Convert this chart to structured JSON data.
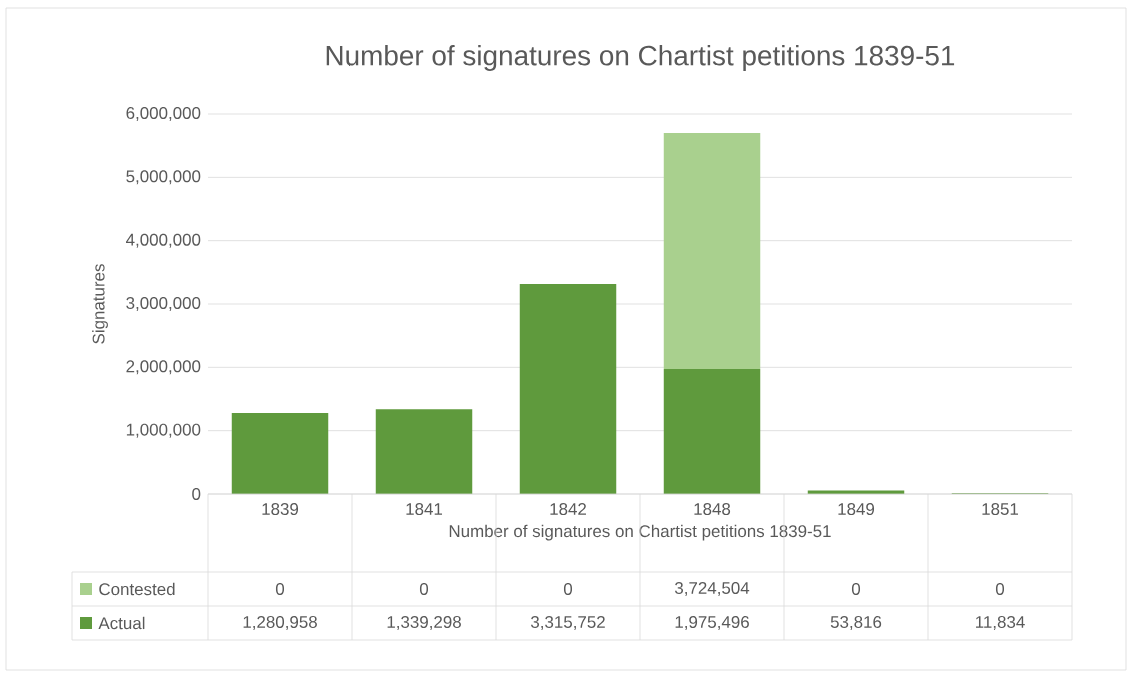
{
  "chart_data": {
    "type": "bar",
    "title": "Number of signatures on Chartist petitions 1839-51",
    "xlabel": "Number of signatures on Chartist petitions 1839-51",
    "ylabel": "Signatures",
    "categories": [
      "1839",
      "1841",
      "1842",
      "1848",
      "1849",
      "1851"
    ],
    "stacked": true,
    "series": [
      {
        "name": "Actual",
        "color": "#5f9a3d",
        "values": [
          1280958,
          1339298,
          3315752,
          1975496,
          53816,
          11834
        ],
        "value_labels": [
          "1,280,958",
          "1,339,298",
          "3,315,752",
          "1,975,496",
          "53,816",
          "11,834"
        ]
      },
      {
        "name": "Contested",
        "color": "#a9d08e",
        "values": [
          0,
          0,
          0,
          3724504,
          0,
          0
        ],
        "value_labels": [
          "0",
          "0",
          "0",
          "3,724,504",
          "0",
          "0"
        ]
      }
    ],
    "ylim": [
      0,
      6000000
    ],
    "yticks": [
      0,
      {
        "value": 1000000,
        "label": "1,000,000"
      },
      {
        "value": 2000000,
        "label": "2,000,000"
      },
      {
        "value": 3000000,
        "label": "3,000,000"
      },
      {
        "value": 4000000,
        "label": "4,000,000"
      },
      {
        "value": 5000000,
        "label": "5,000,000"
      },
      {
        "value": 6000000,
        "label": "6,000,000"
      }
    ],
    "grid": "y",
    "legend": "bottom"
  }
}
